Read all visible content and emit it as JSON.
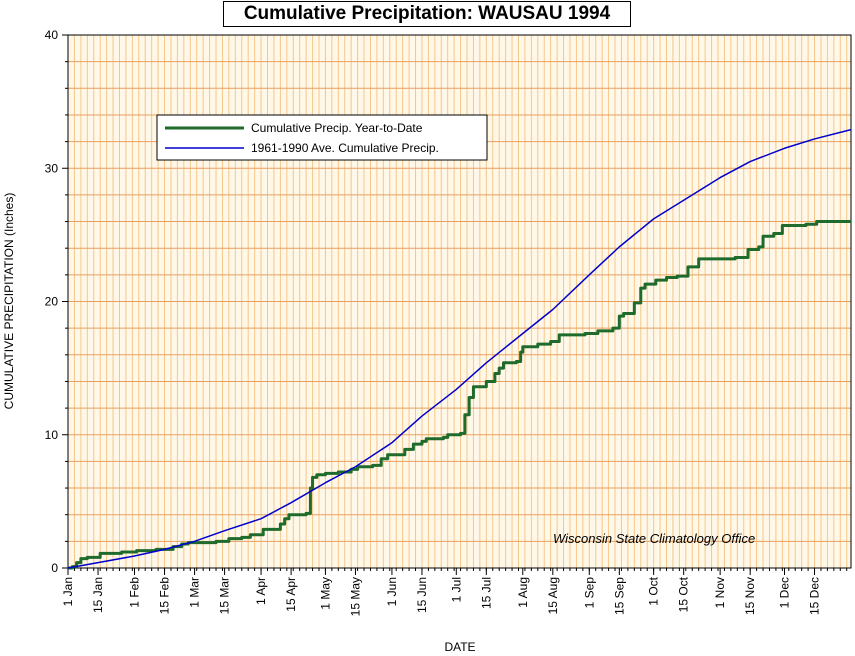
{
  "chart_data": {
    "type": "line",
    "title": "Cumulative Precipitation: WAUSAU 1994",
    "xlabel": "DATE",
    "ylabel": "CUMULATIVE PRECIPITATION (Inches)",
    "ylim": [
      0,
      40
    ],
    "yticks": [
      0,
      10,
      20,
      30,
      40
    ],
    "xlim": [
      1,
      366
    ],
    "xtick_labels": [
      "1 Jan",
      "15 Jan",
      "1 Feb",
      "15 Feb",
      "1 Mar",
      "15 Mar",
      "1 Apr",
      "15 Apr",
      "1 May",
      "15 May",
      "1 Jun",
      "15 Jun",
      "1 Jul",
      "15 Jul",
      "1 Aug",
      "15 Aug",
      "1 Sep",
      "15 Sep",
      "1 Oct",
      "15 Oct",
      "1 Nov",
      "15 Nov",
      "1 Dec",
      "15 Dec"
    ],
    "xtick_days": [
      1,
      15,
      32,
      46,
      60,
      74,
      91,
      105,
      121,
      135,
      152,
      166,
      182,
      196,
      213,
      227,
      244,
      258,
      274,
      288,
      305,
      319,
      335,
      349
    ],
    "grid": true,
    "legend_position": "top-left",
    "annotation": "Wisconsin State Climatology Office",
    "series": [
      {
        "name": "Cumulative Precip. Year-to-Date",
        "color": "#1e6b2c",
        "step": true,
        "points": [
          [
            1,
            0
          ],
          [
            3,
            0.1
          ],
          [
            5,
            0.4
          ],
          [
            7,
            0.7
          ],
          [
            10,
            0.8
          ],
          [
            16,
            1.1
          ],
          [
            26,
            1.2
          ],
          [
            33,
            1.3
          ],
          [
            42,
            1.4
          ],
          [
            50,
            1.6
          ],
          [
            54,
            1.8
          ],
          [
            57,
            1.9
          ],
          [
            70,
            2.0
          ],
          [
            76,
            2.2
          ],
          [
            82,
            2.3
          ],
          [
            86,
            2.5
          ],
          [
            92,
            2.9
          ],
          [
            100,
            3.3
          ],
          [
            102,
            3.7
          ],
          [
            104,
            4.0
          ],
          [
            112,
            4.1
          ],
          [
            114,
            6.0
          ],
          [
            115,
            6.8
          ],
          [
            117,
            7.0
          ],
          [
            121,
            7.1
          ],
          [
            127,
            7.2
          ],
          [
            133,
            7.4
          ],
          [
            136,
            7.6
          ],
          [
            143,
            7.7
          ],
          [
            147,
            8.2
          ],
          [
            150,
            8.5
          ],
          [
            158,
            8.9
          ],
          [
            162,
            9.3
          ],
          [
            166,
            9.5
          ],
          [
            168,
            9.7
          ],
          [
            176,
            9.8
          ],
          [
            178,
            10.0
          ],
          [
            184,
            10.1
          ],
          [
            186,
            11.5
          ],
          [
            188,
            12.8
          ],
          [
            190,
            13.6
          ],
          [
            196,
            14.0
          ],
          [
            200,
            14.6
          ],
          [
            202,
            15.0
          ],
          [
            204,
            15.4
          ],
          [
            210,
            15.5
          ],
          [
            212,
            16.2
          ],
          [
            213,
            16.6
          ],
          [
            220,
            16.8
          ],
          [
            226,
            17.0
          ],
          [
            230,
            17.5
          ],
          [
            242,
            17.6
          ],
          [
            248,
            17.8
          ],
          [
            255,
            18.0
          ],
          [
            258,
            18.9
          ],
          [
            260,
            19.1
          ],
          [
            265,
            19.9
          ],
          [
            268,
            21.0
          ],
          [
            270,
            21.3
          ],
          [
            275,
            21.6
          ],
          [
            280,
            21.8
          ],
          [
            285,
            21.9
          ],
          [
            290,
            22.6
          ],
          [
            295,
            23.2
          ],
          [
            312,
            23.3
          ],
          [
            318,
            23.9
          ],
          [
            323,
            24.1
          ],
          [
            325,
            24.9
          ],
          [
            330,
            25.1
          ],
          [
            334,
            25.7
          ],
          [
            345,
            25.8
          ],
          [
            350,
            26.0
          ],
          [
            366,
            26.0
          ]
        ]
      },
      {
        "name": "1961-1990 Ave. Cumulative Precip.",
        "color": "#0000cc",
        "step": false,
        "points": [
          [
            1,
            0
          ],
          [
            15,
            0.4
          ],
          [
            32,
            0.9
          ],
          [
            46,
            1.4
          ],
          [
            60,
            2.0
          ],
          [
            74,
            2.8
          ],
          [
            91,
            3.7
          ],
          [
            105,
            4.9
          ],
          [
            121,
            6.4
          ],
          [
            135,
            7.6
          ],
          [
            152,
            9.4
          ],
          [
            166,
            11.4
          ],
          [
            182,
            13.4
          ],
          [
            196,
            15.4
          ],
          [
            213,
            17.6
          ],
          [
            227,
            19.4
          ],
          [
            244,
            22.0
          ],
          [
            258,
            24.1
          ],
          [
            274,
            26.2
          ],
          [
            288,
            27.6
          ],
          [
            305,
            29.3
          ],
          [
            319,
            30.5
          ],
          [
            335,
            31.5
          ],
          [
            349,
            32.2
          ],
          [
            366,
            32.9
          ]
        ]
      }
    ]
  }
}
